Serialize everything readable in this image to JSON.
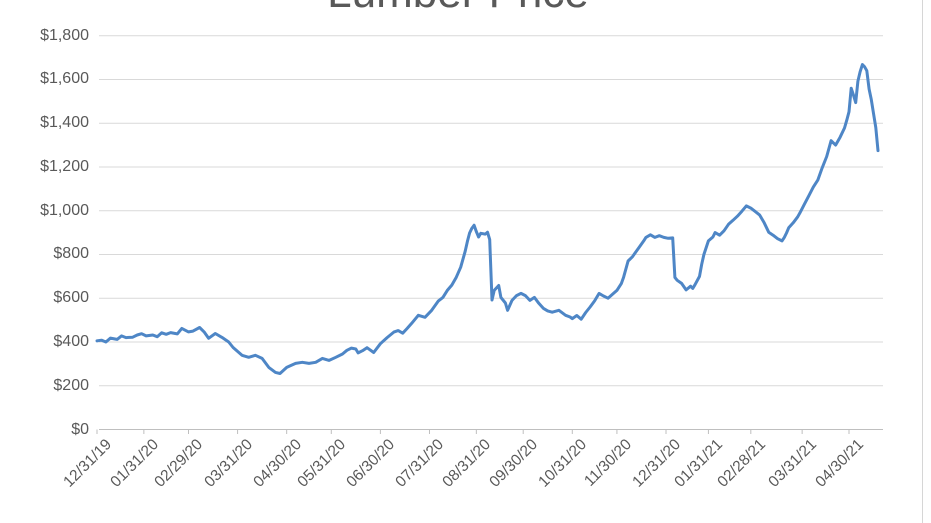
{
  "window": {
    "background_color": "#FFFFFF",
    "border_color": "#D6D6D6"
  },
  "chart_data": {
    "type": "line",
    "title": "Lumber Price",
    "legend": "none",
    "grid": "horizontal",
    "ylim": [
      0,
      1800
    ],
    "y_axis_format": "$#,##0",
    "gridline_color": "#D9D9D9",
    "axis_color": "#BFBFBF",
    "label_color": "#595959",
    "y_ticks": [
      {
        "label": "$0",
        "value": 0
      },
      {
        "label": "$200",
        "value": 200
      },
      {
        "label": "$400",
        "value": 400
      },
      {
        "label": "$600",
        "value": 600
      },
      {
        "label": "$800",
        "value": 800
      },
      {
        "label": "$1,000",
        "value": 1000
      },
      {
        "label": "$1,200",
        "value": 1200
      },
      {
        "label": "$1,400",
        "value": 1400
      },
      {
        "label": "$1,600",
        "value": 1600
      },
      {
        "label": "$1,800",
        "value": 1800
      }
    ],
    "x_ticks": [
      {
        "label": "12/31/19",
        "td": 0
      },
      {
        "label": "01/31/20",
        "td": 21
      },
      {
        "label": "02/29/20",
        "td": 41
      },
      {
        "label": "03/31/20",
        "td": 63
      },
      {
        "label": "04/30/20",
        "td": 85
      },
      {
        "label": "05/31/20",
        "td": 105
      },
      {
        "label": "06/30/20",
        "td": 127
      },
      {
        "label": "07/31/20",
        "td": 149
      },
      {
        "label": "08/31/20",
        "td": 170
      },
      {
        "label": "09/30/20",
        "td": 191
      },
      {
        "label": "10/31/20",
        "td": 213
      },
      {
        "label": "11/30/20",
        "td": 233
      },
      {
        "label": "12/31/20",
        "td": 255
      },
      {
        "label": "01/31/21",
        "td": 274
      },
      {
        "label": "02/28/21",
        "td": 293
      },
      {
        "label": "03/31/21",
        "td": 316
      },
      {
        "label": "04/30/21",
        "td": 337
      }
    ],
    "x_range_trading_days": [
      0,
      350
    ],
    "series": [
      {
        "name": "Lumber Price",
        "color": "#4E86C6",
        "points": [
          [
            0,
            405
          ],
          [
            2,
            408
          ],
          [
            4,
            400
          ],
          [
            6,
            418
          ],
          [
            9,
            412
          ],
          [
            11,
            428
          ],
          [
            13,
            420
          ],
          [
            16,
            422
          ],
          [
            18,
            432
          ],
          [
            20,
            438
          ],
          [
            22,
            428
          ],
          [
            25,
            432
          ],
          [
            27,
            424
          ],
          [
            29,
            442
          ],
          [
            31,
            435
          ],
          [
            33,
            443
          ],
          [
            36,
            437
          ],
          [
            38,
            462
          ],
          [
            41,
            446
          ],
          [
            43,
            450
          ],
          [
            46,
            466
          ],
          [
            48,
            446
          ],
          [
            50,
            417
          ],
          [
            53,
            439
          ],
          [
            56,
            421
          ],
          [
            59,
            400
          ],
          [
            61,
            375
          ],
          [
            65,
            339
          ],
          [
            68,
            330
          ],
          [
            71,
            339
          ],
          [
            74,
            325
          ],
          [
            77,
            284
          ],
          [
            80,
            261
          ],
          [
            82,
            256
          ],
          [
            85,
            284
          ],
          [
            87,
            293
          ],
          [
            89,
            302
          ],
          [
            92,
            307
          ],
          [
            95,
            302
          ],
          [
            98,
            307
          ],
          [
            101,
            325
          ],
          [
            104,
            316
          ],
          [
            107,
            330
          ],
          [
            110,
            345
          ],
          [
            112,
            362
          ],
          [
            114,
            372
          ],
          [
            116,
            368
          ],
          [
            117,
            350
          ],
          [
            119,
            360
          ],
          [
            121,
            374
          ],
          [
            124,
            352
          ],
          [
            127,
            392
          ],
          [
            130,
            420
          ],
          [
            133,
            445
          ],
          [
            135,
            452
          ],
          [
            137,
            440
          ],
          [
            139,
            462
          ],
          [
            141,
            485
          ],
          [
            144,
            522
          ],
          [
            147,
            513
          ],
          [
            150,
            545
          ],
          [
            153,
            588
          ],
          [
            155,
            604
          ],
          [
            157,
            636
          ],
          [
            159,
            660
          ],
          [
            161,
            696
          ],
          [
            163,
            742
          ],
          [
            165,
            815
          ],
          [
            166,
            860
          ],
          [
            167,
            898
          ],
          [
            168,
            920
          ],
          [
            169,
            934
          ],
          [
            170,
            905
          ],
          [
            171,
            880
          ],
          [
            172,
            897
          ],
          [
            174,
            893
          ],
          [
            175,
            902
          ],
          [
            176,
            868
          ],
          [
            177,
            592
          ],
          [
            178,
            636
          ],
          [
            180,
            658
          ],
          [
            181,
            604
          ],
          [
            183,
            578
          ],
          [
            184,
            545
          ],
          [
            186,
            590
          ],
          [
            188,
            612
          ],
          [
            190,
            622
          ],
          [
            192,
            612
          ],
          [
            194,
            590
          ],
          [
            196,
            604
          ],
          [
            198,
            577
          ],
          [
            200,
            554
          ],
          [
            202,
            542
          ],
          [
            204,
            536
          ],
          [
            207,
            545
          ],
          [
            210,
            522
          ],
          [
            212,
            514
          ],
          [
            213,
            507
          ],
          [
            215,
            521
          ],
          [
            217,
            504
          ],
          [
            219,
            535
          ],
          [
            221,
            560
          ],
          [
            223,
            588
          ],
          [
            225,
            622
          ],
          [
            227,
            610
          ],
          [
            229,
            600
          ],
          [
            231,
            618
          ],
          [
            233,
            636
          ],
          [
            235,
            668
          ],
          [
            236,
            696
          ],
          [
            238,
            770
          ],
          [
            240,
            790
          ],
          [
            241,
            805
          ],
          [
            243,
            833
          ],
          [
            245,
            862
          ],
          [
            246,
            878
          ],
          [
            248,
            890
          ],
          [
            250,
            878
          ],
          [
            252,
            886
          ],
          [
            254,
            878
          ],
          [
            256,
            874
          ],
          [
            258,
            876
          ],
          [
            259,
            695
          ],
          [
            260,
            682
          ],
          [
            262,
            668
          ],
          [
            264,
            638
          ],
          [
            266,
            655
          ],
          [
            267,
            645
          ],
          [
            268,
            662
          ],
          [
            270,
            700
          ],
          [
            271,
            755
          ],
          [
            272,
            800
          ],
          [
            274,
            862
          ],
          [
            276,
            880
          ],
          [
            277,
            900
          ],
          [
            279,
            888
          ],
          [
            281,
            908
          ],
          [
            283,
            938
          ],
          [
            285,
            956
          ],
          [
            287,
            975
          ],
          [
            289,
            998
          ],
          [
            291,
            1022
          ],
          [
            293,
            1012
          ],
          [
            295,
            996
          ],
          [
            297,
            980
          ],
          [
            299,
            945
          ],
          [
            301,
            902
          ],
          [
            303,
            888
          ],
          [
            305,
            872
          ],
          [
            307,
            862
          ],
          [
            308,
            878
          ],
          [
            309,
            898
          ],
          [
            310,
            922
          ],
          [
            312,
            945
          ],
          [
            314,
            972
          ],
          [
            315,
            990
          ],
          [
            317,
            1030
          ],
          [
            319,
            1068
          ],
          [
            321,
            1108
          ],
          [
            323,
            1140
          ],
          [
            325,
            1196
          ],
          [
            327,
            1248
          ],
          [
            329,
            1320
          ],
          [
            331,
            1300
          ],
          [
            333,
            1336
          ],
          [
            335,
            1378
          ],
          [
            336,
            1414
          ],
          [
            337,
            1452
          ],
          [
            338,
            1560
          ],
          [
            339,
            1528
          ],
          [
            340,
            1494
          ],
          [
            341,
            1592
          ],
          [
            342,
            1635
          ],
          [
            343,
            1668
          ],
          [
            344,
            1658
          ],
          [
            345,
            1640
          ],
          [
            346,
            1556
          ],
          [
            347,
            1508
          ],
          [
            348,
            1445
          ],
          [
            349,
            1380
          ],
          [
            350,
            1275
          ]
        ]
      }
    ]
  }
}
